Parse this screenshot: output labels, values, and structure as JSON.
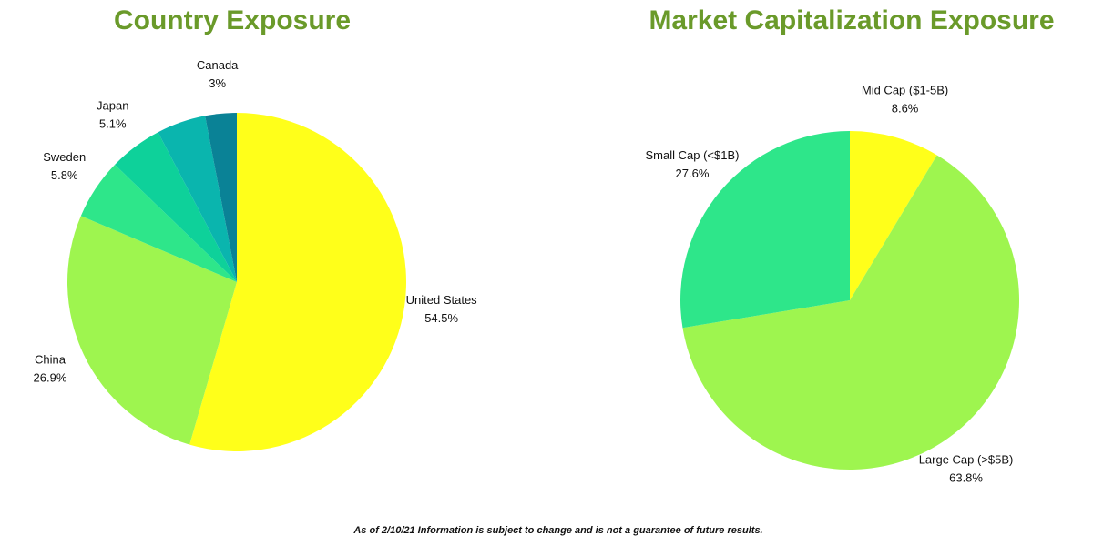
{
  "chart_data": [
    {
      "type": "pie",
      "title": "Country Exposure",
      "categories": [
        "United States",
        "China",
        "Sweden",
        "Japan",
        null,
        "Canada"
      ],
      "values": [
        54.5,
        26.9,
        5.8,
        5.1,
        4.7,
        3
      ],
      "value_labels": [
        "54.5%",
        "26.9%",
        "5.8%",
        "5.1%",
        null,
        "3%"
      ],
      "colors": [
        "#ffff1a",
        "#9ef54f",
        "#2ee68a",
        "#0ed19a",
        "#0ab5ae",
        "#0a8296"
      ]
    },
    {
      "type": "pie",
      "title": "Market Capitalization Exposure",
      "categories": [
        "Mid Cap ($1-5B)",
        "Large Cap (>$5B)",
        "Small Cap (<$1B)"
      ],
      "values": [
        8.6,
        63.8,
        27.6
      ],
      "value_labels": [
        "8.6%",
        "63.8%",
        "27.6%"
      ],
      "colors": [
        "#ffff1a",
        "#9ef54f",
        "#2ee68a"
      ]
    }
  ],
  "footnote": "As of 2/10/21 Information is subject to change and is not a guarantee of future results."
}
